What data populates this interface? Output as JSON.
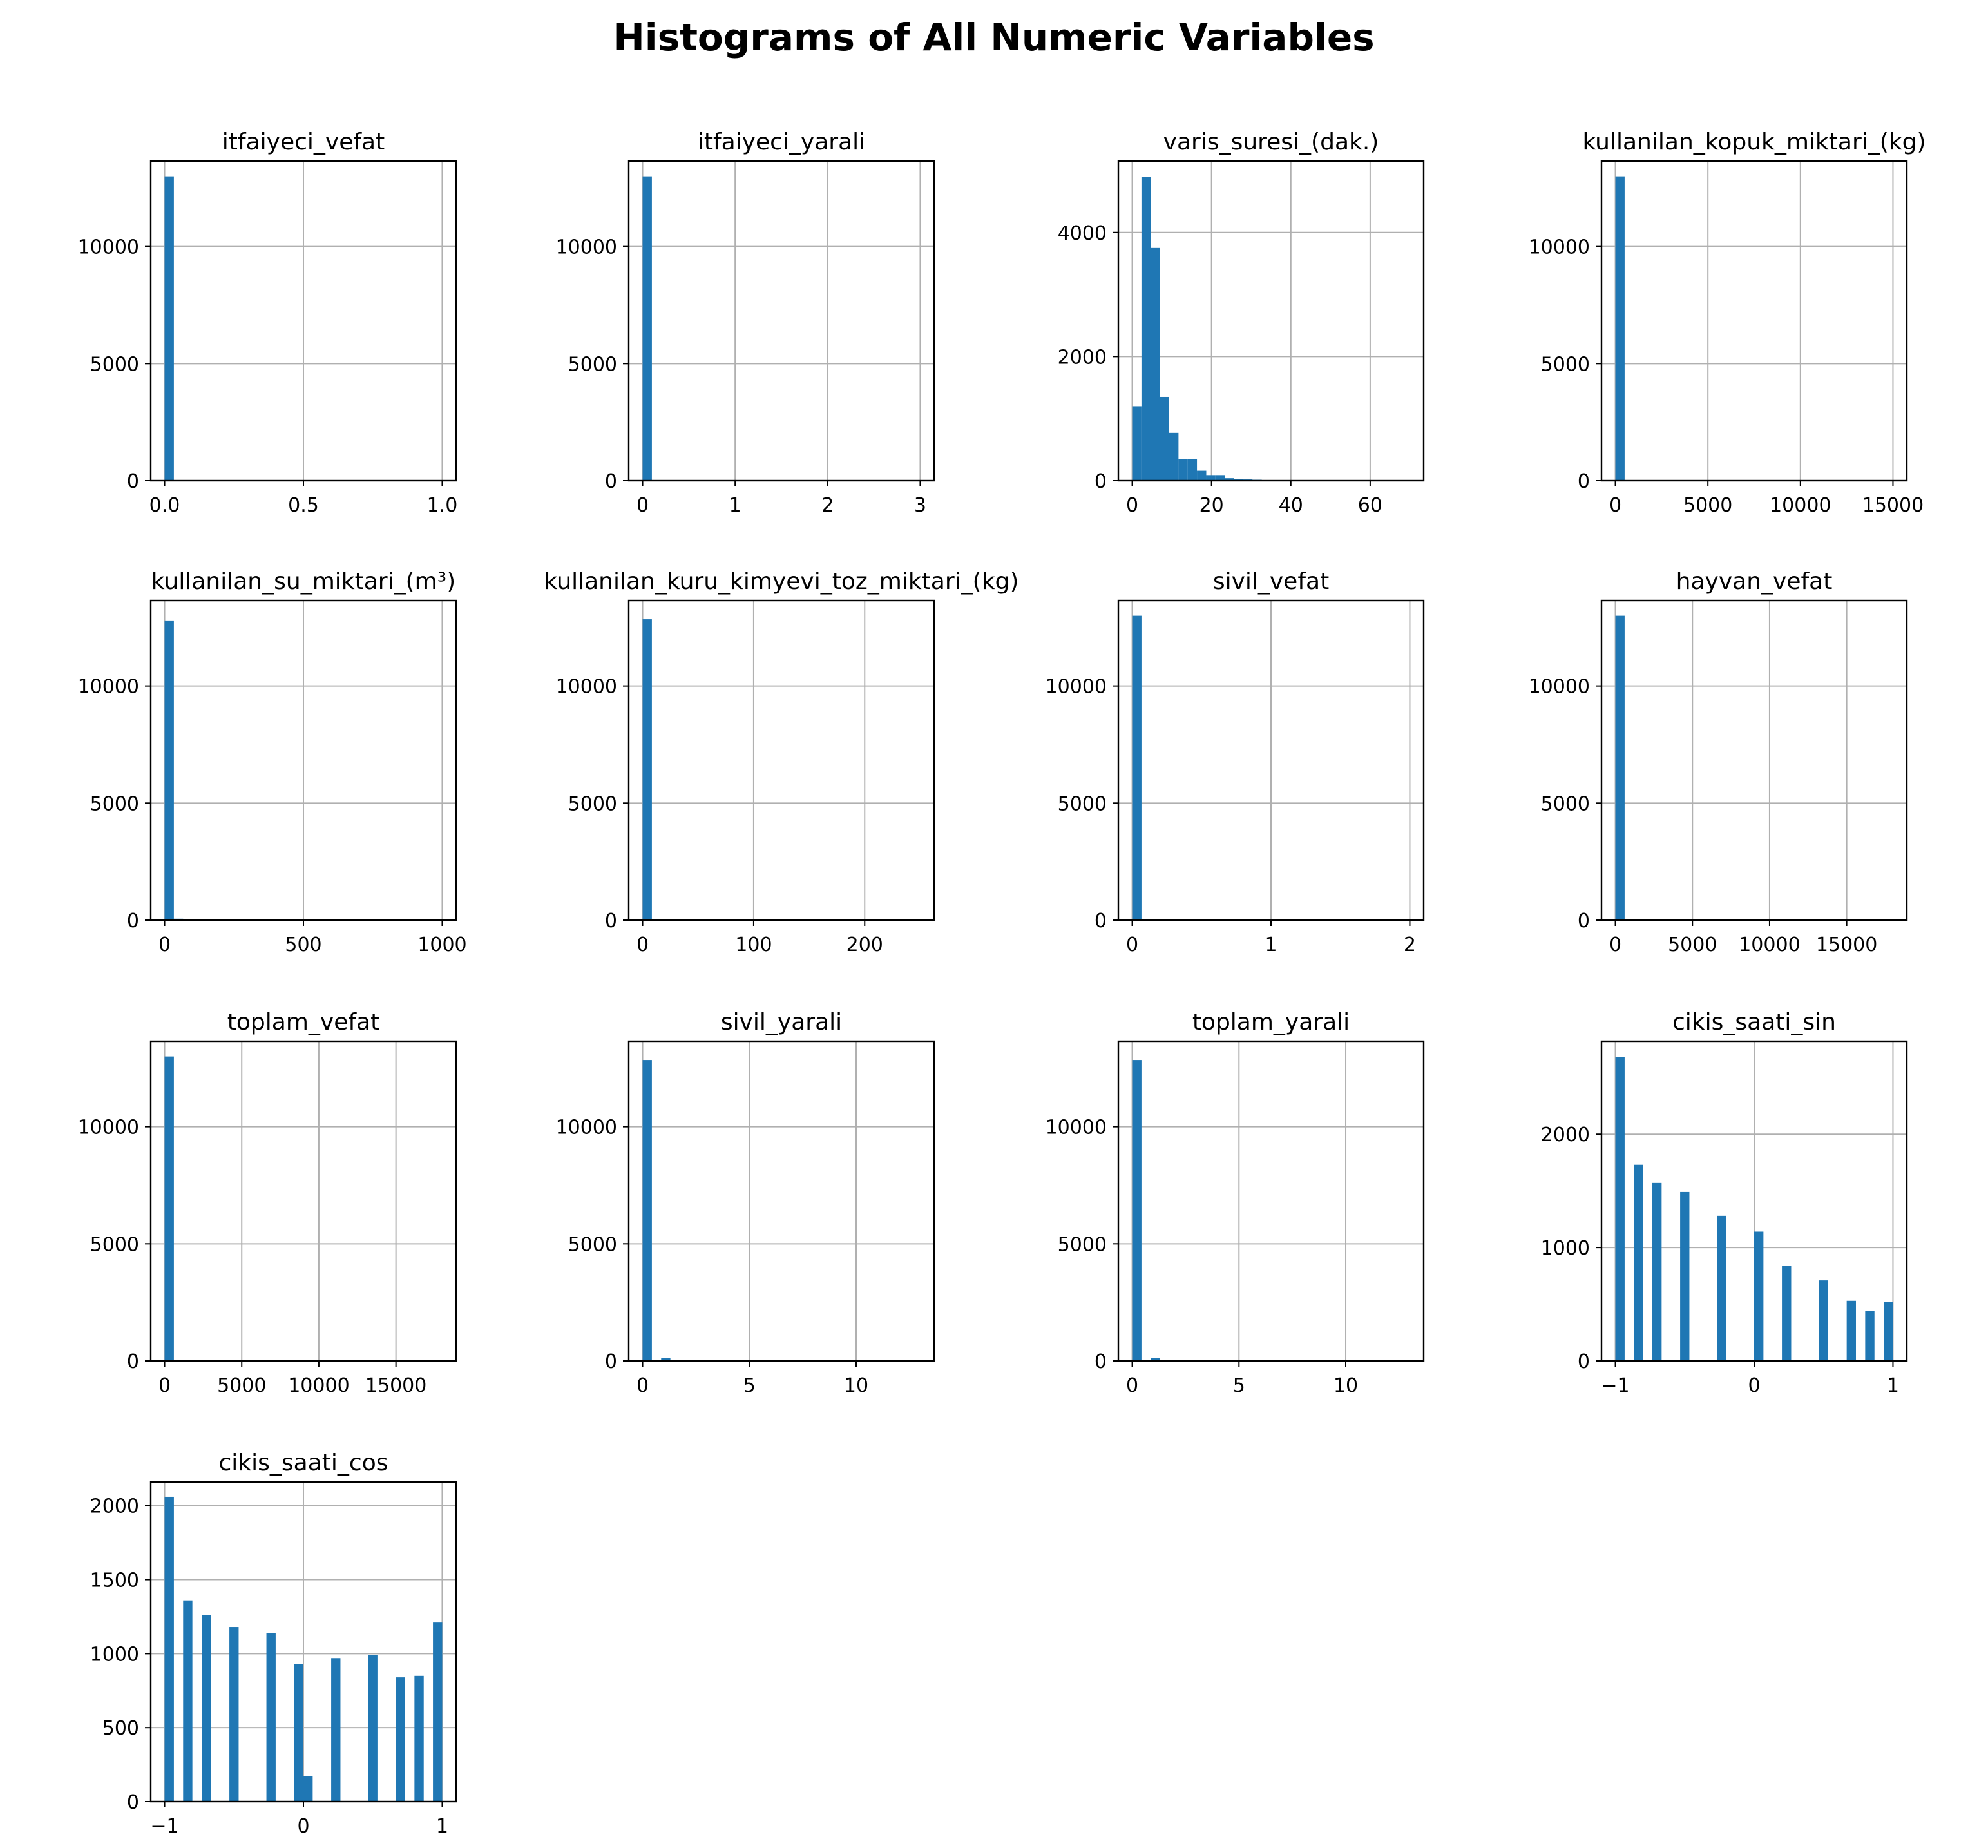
{
  "figure": {
    "title": "Histograms of All Numeric Variables"
  },
  "colors": {
    "bar": "#1f77b4",
    "grid": "#b0b0b0",
    "axis": "#000000",
    "text": "#000000"
  },
  "chart_data": [
    {
      "type": "bar",
      "title": "itfaiyeci_vefat",
      "xlim": [
        -0.05,
        1.05
      ],
      "ylim": [
        0,
        13650
      ],
      "xticks": [
        0,
        0.5,
        1
      ],
      "xticklabels": [
        "0.0",
        "0.5",
        "1.0"
      ],
      "yticks": [
        0,
        5000,
        10000
      ],
      "yticklabels": [
        "0",
        "5000",
        "10000"
      ],
      "grid": true,
      "bins": [
        {
          "x0": 0.0,
          "x1": 0.0333,
          "count": 13000
        }
      ]
    },
    {
      "type": "bar",
      "title": "itfaiyeci_yarali",
      "xlim": [
        -0.15,
        3.15
      ],
      "ylim": [
        0,
        13650
      ],
      "xticks": [
        0,
        1,
        2,
        3
      ],
      "xticklabels": [
        "0",
        "1",
        "2",
        "3"
      ],
      "yticks": [
        0,
        5000,
        10000
      ],
      "yticklabels": [
        "0",
        "5000",
        "10000"
      ],
      "grid": true,
      "bins": [
        {
          "x0": 0.0,
          "x1": 0.1,
          "count": 13000
        }
      ]
    },
    {
      "type": "bar",
      "title": "varis_suresi_(dak.)",
      "xlim": [
        -3.5,
        73.5
      ],
      "ylim": [
        0,
        5150
      ],
      "xticks": [
        0,
        20,
        40,
        60
      ],
      "xticklabels": [
        "0",
        "20",
        "40",
        "60"
      ],
      "yticks": [
        0,
        2000,
        4000
      ],
      "yticklabels": [
        "0",
        "2000",
        "4000"
      ],
      "grid": true,
      "bins": [
        {
          "x0": 0.0,
          "x1": 2.33,
          "count": 1200
        },
        {
          "x0": 2.33,
          "x1": 4.67,
          "count": 4900
        },
        {
          "x0": 4.67,
          "x1": 7.0,
          "count": 3750
        },
        {
          "x0": 7.0,
          "x1": 9.33,
          "count": 1350
        },
        {
          "x0": 9.33,
          "x1": 11.67,
          "count": 770
        },
        {
          "x0": 11.67,
          "x1": 14.0,
          "count": 350
        },
        {
          "x0": 14.0,
          "x1": 16.33,
          "count": 350
        },
        {
          "x0": 16.33,
          "x1": 18.67,
          "count": 160
        },
        {
          "x0": 18.67,
          "x1": 21.0,
          "count": 90
        },
        {
          "x0": 21.0,
          "x1": 23.33,
          "count": 90
        },
        {
          "x0": 23.33,
          "x1": 25.67,
          "count": 40
        },
        {
          "x0": 25.67,
          "x1": 28.0,
          "count": 30
        },
        {
          "x0": 28.0,
          "x1": 30.33,
          "count": 20
        },
        {
          "x0": 30.33,
          "x1": 32.67,
          "count": 15
        },
        {
          "x0": 32.67,
          "x1": 35.0,
          "count": 10
        },
        {
          "x0": 35.0,
          "x1": 37.33,
          "count": 10
        },
        {
          "x0": 37.33,
          "x1": 39.67,
          "count": 5
        },
        {
          "x0": 39.67,
          "x1": 42.0,
          "count": 5
        }
      ]
    },
    {
      "type": "bar",
      "title": "kullanilan_kopuk_miktari_(kg)",
      "xlim": [
        -750,
        15750
      ],
      "ylim": [
        0,
        13650
      ],
      "xticks": [
        0,
        5000,
        10000,
        15000
      ],
      "xticklabels": [
        "0",
        "5000",
        "10000",
        "15000"
      ],
      "yticks": [
        0,
        5000,
        10000
      ],
      "yticklabels": [
        "0",
        "5000",
        "10000"
      ],
      "grid": true,
      "bins": [
        {
          "x0": 0,
          "x1": 500,
          "count": 13000
        }
      ]
    },
    {
      "type": "bar",
      "title": "kullanilan_su_miktari_(m³)",
      "xlim": [
        -50,
        1050
      ],
      "ylim": [
        0,
        13650
      ],
      "xticks": [
        0,
        500,
        1000
      ],
      "xticklabels": [
        "0",
        "500",
        "1000"
      ],
      "yticks": [
        0,
        5000,
        10000
      ],
      "yticklabels": [
        "0",
        "5000",
        "10000"
      ],
      "grid": true,
      "bins": [
        {
          "x0": 0,
          "x1": 33.3,
          "count": 12800
        },
        {
          "x0": 33.3,
          "x1": 66.7,
          "count": 60
        }
      ]
    },
    {
      "type": "bar",
      "title": "kullanilan_kuru_kimyevi_toz_miktari_(kg)",
      "xlim": [
        -12.5,
        262.5
      ],
      "ylim": [
        0,
        13650
      ],
      "xticks": [
        0,
        100,
        200
      ],
      "xticklabels": [
        "0",
        "100",
        "200"
      ],
      "yticks": [
        0,
        5000,
        10000
      ],
      "yticklabels": [
        "0",
        "5000",
        "10000"
      ],
      "grid": true,
      "bins": [
        {
          "x0": 0,
          "x1": 8.33,
          "count": 12850
        },
        {
          "x0": 8.33,
          "x1": 16.67,
          "count": 40
        }
      ]
    },
    {
      "type": "bar",
      "title": "sivil_vefat",
      "xlim": [
        -0.1,
        2.1
      ],
      "ylim": [
        0,
        13650
      ],
      "xticks": [
        0,
        1,
        2
      ],
      "xticklabels": [
        "0",
        "1",
        "2"
      ],
      "yticks": [
        0,
        5000,
        10000
      ],
      "yticklabels": [
        "0",
        "5000",
        "10000"
      ],
      "grid": true,
      "bins": [
        {
          "x0": 0.0,
          "x1": 0.0667,
          "count": 13000
        }
      ]
    },
    {
      "type": "bar",
      "title": "hayvan_vefat",
      "xlim": [
        -900,
        18900
      ],
      "ylim": [
        0,
        13650
      ],
      "xticks": [
        0,
        5000,
        10000,
        15000
      ],
      "xticklabels": [
        "0",
        "5000",
        "10000",
        "15000"
      ],
      "yticks": [
        0,
        5000,
        10000
      ],
      "yticklabels": [
        "0",
        "5000",
        "10000"
      ],
      "grid": true,
      "bins": [
        {
          "x0": 0,
          "x1": 600,
          "count": 13000
        }
      ]
    },
    {
      "type": "bar",
      "title": "toplam_vefat",
      "xlim": [
        -900,
        18900
      ],
      "ylim": [
        0,
        13650
      ],
      "xticks": [
        0,
        5000,
        10000,
        15000
      ],
      "xticklabels": [
        "0",
        "5000",
        "10000",
        "15000"
      ],
      "yticks": [
        0,
        5000,
        10000
      ],
      "yticklabels": [
        "0",
        "5000",
        "10000"
      ],
      "grid": true,
      "bins": [
        {
          "x0": 0,
          "x1": 600,
          "count": 13000
        }
      ]
    },
    {
      "type": "bar",
      "title": "sivil_yarali",
      "xlim": [
        -0.65,
        13.65
      ],
      "ylim": [
        0,
        13650
      ],
      "xticks": [
        0,
        5,
        10
      ],
      "xticklabels": [
        "0",
        "5",
        "10"
      ],
      "yticks": [
        0,
        5000,
        10000
      ],
      "yticklabels": [
        "0",
        "5000",
        "10000"
      ],
      "grid": true,
      "bins": [
        {
          "x0": 0,
          "x1": 0.433,
          "count": 12850
        },
        {
          "x0": 0.867,
          "x1": 1.3,
          "count": 120
        }
      ]
    },
    {
      "type": "bar",
      "title": "toplam_yarali",
      "xlim": [
        -0.65,
        13.65
      ],
      "ylim": [
        0,
        13650
      ],
      "xticks": [
        0,
        5,
        10
      ],
      "xticklabels": [
        "0",
        "5",
        "10"
      ],
      "yticks": [
        0,
        5000,
        10000
      ],
      "yticklabels": [
        "0",
        "5000",
        "10000"
      ],
      "grid": true,
      "bins": [
        {
          "x0": 0,
          "x1": 0.433,
          "count": 12850
        },
        {
          "x0": 0.867,
          "x1": 1.3,
          "count": 120
        }
      ]
    },
    {
      "type": "bar",
      "title": "cikis_saati_sin",
      "xlim": [
        -1.1,
        1.1
      ],
      "ylim": [
        0,
        2820
      ],
      "xticks": [
        -1,
        0,
        1
      ],
      "xticklabels": [
        "−1",
        "0",
        "1"
      ],
      "yticks": [
        0,
        1000,
        2000
      ],
      "yticklabels": [
        "0",
        "1000",
        "2000"
      ],
      "grid": true,
      "bins": [
        {
          "x0": -1.0,
          "x1": -0.9333,
          "count": 2680
        },
        {
          "x0": -0.8667,
          "x1": -0.8,
          "count": 1730
        },
        {
          "x0": -0.7333,
          "x1": -0.6667,
          "count": 1570
        },
        {
          "x0": -0.5333,
          "x1": -0.4667,
          "count": 1490
        },
        {
          "x0": -0.2667,
          "x1": -0.2,
          "count": 1280
        },
        {
          "x0": 0.0,
          "x1": 0.0667,
          "count": 1140
        },
        {
          "x0": 0.2,
          "x1": 0.2667,
          "count": 840
        },
        {
          "x0": 0.4667,
          "x1": 0.5333,
          "count": 710
        },
        {
          "x0": 0.6667,
          "x1": 0.7333,
          "count": 530
        },
        {
          "x0": 0.8,
          "x1": 0.8667,
          "count": 440
        },
        {
          "x0": 0.9333,
          "x1": 1.0,
          "count": 520
        }
      ]
    },
    {
      "type": "bar",
      "title": "cikis_saati_cos",
      "xlim": [
        -1.1,
        1.1
      ],
      "ylim": [
        0,
        2160
      ],
      "xticks": [
        -1,
        0,
        1
      ],
      "xticklabels": [
        "−1",
        "0",
        "1"
      ],
      "yticks": [
        0,
        500,
        1000,
        1500,
        2000
      ],
      "yticklabels": [
        "0",
        "500",
        "1000",
        "1500",
        "2000"
      ],
      "grid": true,
      "bins": [
        {
          "x0": -1.0,
          "x1": -0.9333,
          "count": 2060
        },
        {
          "x0": -0.8667,
          "x1": -0.8,
          "count": 1360
        },
        {
          "x0": -0.7333,
          "x1": -0.6667,
          "count": 1260
        },
        {
          "x0": -0.5333,
          "x1": -0.4667,
          "count": 1180
        },
        {
          "x0": -0.2667,
          "x1": -0.2,
          "count": 1140
        },
        {
          "x0": -0.0667,
          "x1": 0.0,
          "count": 930
        },
        {
          "x0": 0.0,
          "x1": 0.0667,
          "count": 170
        },
        {
          "x0": 0.2,
          "x1": 0.2667,
          "count": 970
        },
        {
          "x0": 0.4667,
          "x1": 0.5333,
          "count": 990
        },
        {
          "x0": 0.6667,
          "x1": 0.7333,
          "count": 840
        },
        {
          "x0": 0.8,
          "x1": 0.8667,
          "count": 850
        },
        {
          "x0": 0.9333,
          "x1": 1.0,
          "count": 1210
        }
      ]
    }
  ]
}
